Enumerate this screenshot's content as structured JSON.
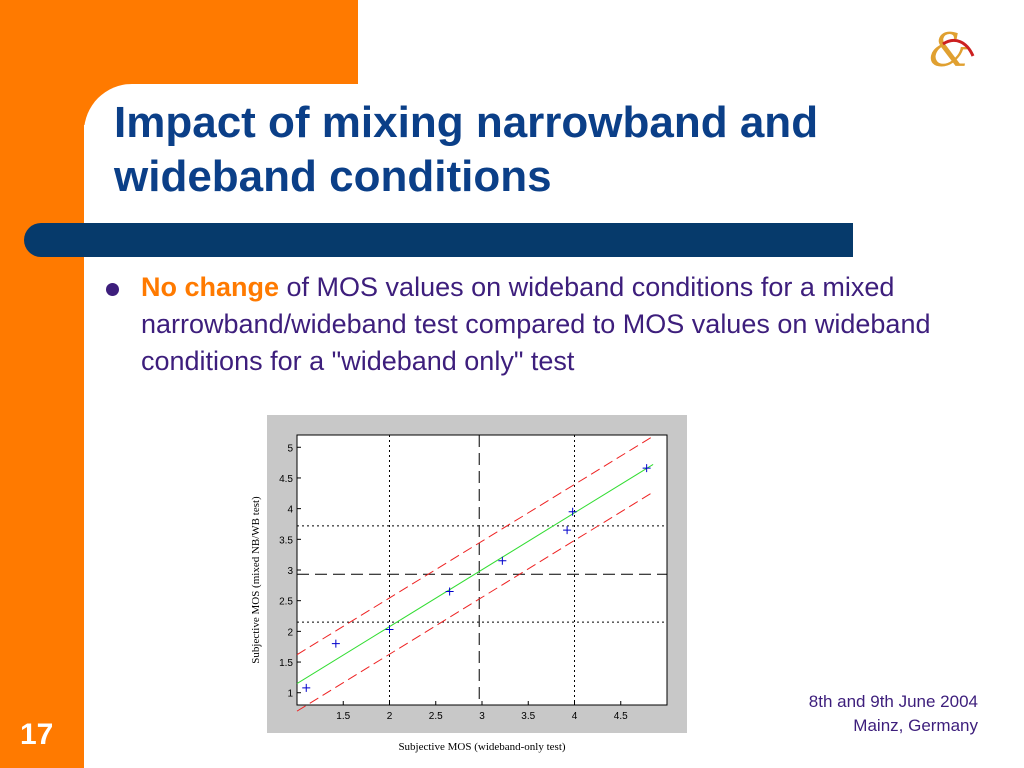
{
  "slide": {
    "title": "Impact of mixing narrowband and wideband conditions",
    "bullet": {
      "highlight": "No change",
      "text": " of MOS values on wideband  conditions for a mixed narrowband/wideband test compared to MOS values on wideband conditions for a \"wideband only\" test"
    },
    "footer": {
      "line1": "8th and 9th June 2004",
      "line2": "Mainz, Germany"
    },
    "page_number": "17",
    "logo_icon": "ampersand-logo-icon",
    "colors": {
      "orange": "#ff7a00",
      "navy": "#063a6b",
      "title_blue": "#0b3f88",
      "text_purple": "#3d1e7c"
    }
  },
  "chart_data": {
    "type": "scatter",
    "xlabel": "Subjective MOS (wideband-only test)",
    "ylabel": "Subjective MOS (mixed NB/WB test)",
    "xlim": [
      1,
      5
    ],
    "ylim": [
      0.8,
      5.2
    ],
    "xticks": [
      1.5,
      2,
      2.5,
      3,
      3.5,
      4,
      4.5
    ],
    "yticks": [
      1,
      1.5,
      2,
      2.5,
      3,
      3.5,
      4,
      4.5,
      5
    ],
    "points": [
      {
        "x": 1.1,
        "y": 1.08
      },
      {
        "x": 1.42,
        "y": 1.8
      },
      {
        "x": 2.0,
        "y": 2.03
      },
      {
        "x": 2.65,
        "y": 2.65
      },
      {
        "x": 3.22,
        "y": 3.15
      },
      {
        "x": 3.92,
        "y": 3.65
      },
      {
        "x": 3.98,
        "y": 3.95
      },
      {
        "x": 4.78,
        "y": 4.66
      }
    ],
    "fit_line": {
      "x": [
        1,
        4.85
      ],
      "y": [
        1.15,
        4.72
      ]
    },
    "confidence_upper": {
      "x": [
        1,
        4.85
      ],
      "y": [
        1.62,
        5.18
      ]
    },
    "confidence_lower": {
      "x": [
        1,
        4.85
      ],
      "y": [
        0.7,
        4.27
      ]
    },
    "mean_lines": {
      "x": 2.97,
      "y": 2.93
    },
    "reference_lines": {
      "x": [
        2,
        4
      ],
      "y": [
        2.15,
        3.72
      ]
    },
    "colors": {
      "points": "#0000cc",
      "fit": "#33dd33",
      "confidence": "#ee2222",
      "background": "#c8c8c8"
    }
  }
}
